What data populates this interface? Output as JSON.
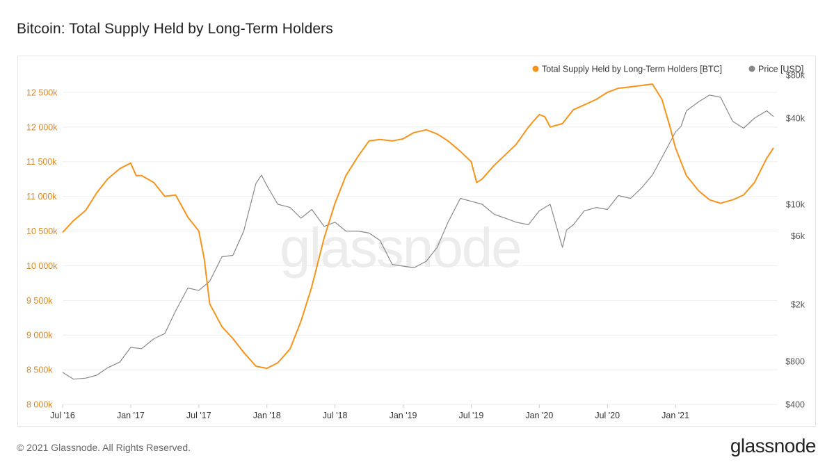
{
  "page": {
    "title": "Bitcoin: Total Supply Held by Long-Term Holders",
    "footer_copyright": "© 2021 Glassnode. All Rights Reserved.",
    "footer_logo": "glassnode",
    "watermark": "glassnode"
  },
  "colors": {
    "supply": "#f7931a",
    "price": "#888888",
    "left_axis_text": "#d4892a",
    "grid": "#eeeeee"
  },
  "chart_data": {
    "type": "line",
    "title": "Bitcoin: Total Supply Held by Long-Term Holders",
    "legend_position": "top-right",
    "grid": true,
    "x_ticks": [
      "Jul '16",
      "Jan '17",
      "Jul '17",
      "Jan '18",
      "Jul '18",
      "Jan '19",
      "Jul '19",
      "Jan '20",
      "Jul '20",
      "Jan '21"
    ],
    "x_range": [
      2016.5,
      2021.75
    ],
    "y_left": {
      "range": [
        8000,
        12750
      ],
      "ticks": [
        8000,
        8500,
        9000,
        9500,
        10000,
        10500,
        11000,
        11500,
        12000,
        12500
      ],
      "tick_labels": [
        "8 000k",
        "8 500k",
        "9 000k",
        "9 500k",
        "10 000k",
        "10 500k",
        "11 000k",
        "11 500k",
        "12 000k",
        "12 500k"
      ]
    },
    "y_right": {
      "scale": "log",
      "range": [
        400,
        80000
      ],
      "ticks": [
        400,
        800,
        2000,
        6000,
        10000,
        40000,
        80000
      ],
      "tick_labels": [
        "$400",
        "$800",
        "$2k",
        "$6k",
        "$10k",
        "$40k",
        "$80k"
      ]
    },
    "series": [
      {
        "name": "Total Supply Held by Long-Term Holders [BTC]",
        "axis": "left",
        "x": [
          2016.5,
          2016.58,
          2016.67,
          2016.75,
          2016.83,
          2016.92,
          2017.0,
          2017.04,
          2017.08,
          2017.17,
          2017.25,
          2017.33,
          2017.42,
          2017.5,
          2017.54,
          2017.58,
          2017.67,
          2017.75,
          2017.83,
          2017.92,
          2018.0,
          2018.08,
          2018.17,
          2018.25,
          2018.33,
          2018.42,
          2018.5,
          2018.58,
          2018.67,
          2018.75,
          2018.83,
          2018.92,
          2019.0,
          2019.08,
          2019.17,
          2019.25,
          2019.33,
          2019.42,
          2019.5,
          2019.54,
          2019.58,
          2019.67,
          2019.75,
          2019.83,
          2019.92,
          2020.0,
          2020.04,
          2020.08,
          2020.17,
          2020.25,
          2020.33,
          2020.42,
          2020.5,
          2020.58,
          2020.67,
          2020.75,
          2020.83,
          2020.9,
          2020.96,
          2021.0,
          2021.08,
          2021.17,
          2021.25,
          2021.33,
          2021.42,
          2021.5,
          2021.58,
          2021.67,
          2021.72
        ],
        "values": [
          10480,
          10650,
          10800,
          11050,
          11250,
          11400,
          11480,
          11300,
          11300,
          11200,
          11000,
          11020,
          10700,
          10500,
          10100,
          9450,
          9120,
          8950,
          8750,
          8550,
          8520,
          8600,
          8800,
          9200,
          9700,
          10400,
          10900,
          11300,
          11580,
          11800,
          11820,
          11800,
          11830,
          11920,
          11960,
          11900,
          11800,
          11650,
          11500,
          11200,
          11250,
          11450,
          11600,
          11750,
          12000,
          12180,
          12150,
          12000,
          12050,
          12250,
          12320,
          12400,
          12500,
          12560,
          12580,
          12600,
          12620,
          12400,
          12000,
          11700,
          11300,
          11080,
          10950,
          10900,
          10950,
          11020,
          11200,
          11550,
          11700
        ]
      },
      {
        "name": "Price [USD]",
        "axis": "right",
        "x": [
          2016.5,
          2016.58,
          2016.67,
          2016.75,
          2016.83,
          2016.92,
          2017.0,
          2017.08,
          2017.17,
          2017.25,
          2017.33,
          2017.42,
          2017.5,
          2017.58,
          2017.67,
          2017.75,
          2017.83,
          2017.92,
          2017.96,
          2018.0,
          2018.08,
          2018.17,
          2018.25,
          2018.33,
          2018.42,
          2018.5,
          2018.58,
          2018.67,
          2018.75,
          2018.83,
          2018.92,
          2019.0,
          2019.08,
          2019.17,
          2019.25,
          2019.33,
          2019.42,
          2019.5,
          2019.58,
          2019.67,
          2019.75,
          2019.83,
          2019.92,
          2020.0,
          2020.08,
          2020.17,
          2020.2,
          2020.25,
          2020.33,
          2020.42,
          2020.5,
          2020.58,
          2020.67,
          2020.75,
          2020.83,
          2020.92,
          2021.0,
          2021.04,
          2021.08,
          2021.17,
          2021.25,
          2021.33,
          2021.42,
          2021.5,
          2021.58,
          2021.67,
          2021.72
        ],
        "values": [
          670,
          600,
          610,
          640,
          720,
          790,
          1000,
          980,
          1150,
          1250,
          1800,
          2600,
          2500,
          2900,
          4300,
          4400,
          6500,
          14000,
          16000,
          13500,
          10000,
          9500,
          8000,
          9200,
          7000,
          7500,
          6500,
          6500,
          6300,
          5600,
          3800,
          3700,
          3600,
          4000,
          5000,
          7500,
          11000,
          10500,
          10000,
          8500,
          8000,
          7500,
          7200,
          9000,
          10000,
          5000,
          6600,
          7200,
          9000,
          9500,
          9200,
          11500,
          11000,
          13000,
          16000,
          23000,
          32000,
          35000,
          45000,
          52000,
          58000,
          56000,
          38000,
          34000,
          40000,
          45000,
          41000
        ]
      }
    ]
  }
}
